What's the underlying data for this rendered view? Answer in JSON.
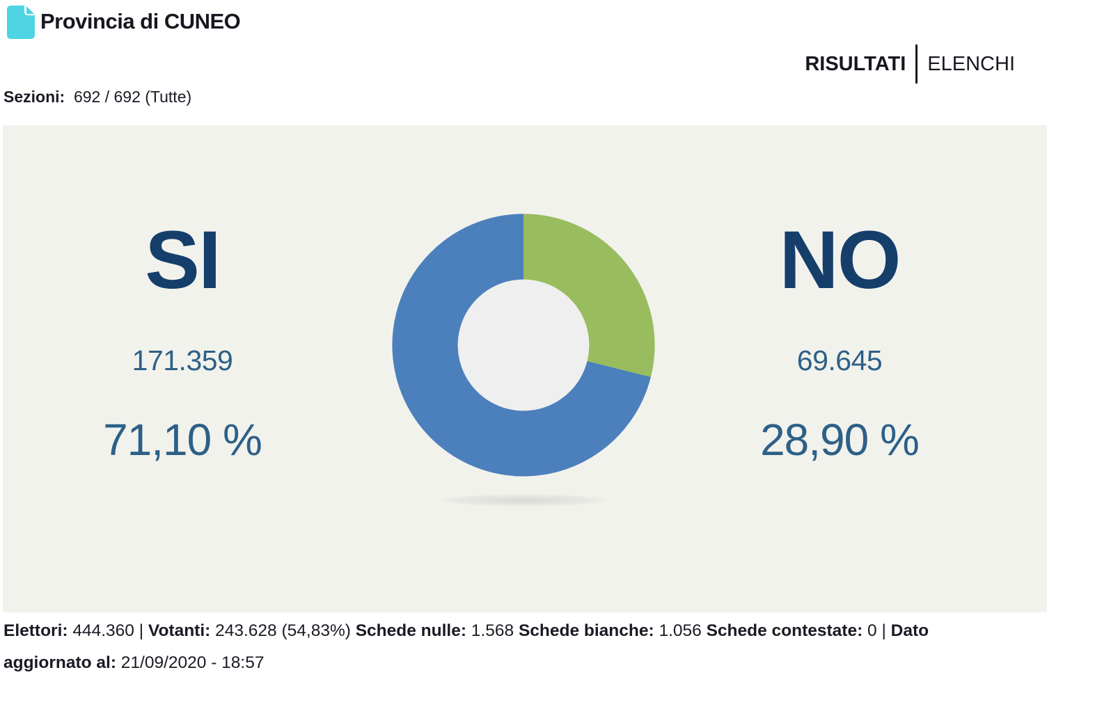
{
  "header": {
    "title": "Provincia di CUNEO",
    "tabs": [
      {
        "id": "risultati",
        "label": "RISULTATI",
        "active": true
      },
      {
        "id": "elenchi",
        "label": "ELENCHI",
        "active": false
      }
    ],
    "sections_label": "Sezioni:",
    "sections_value": "692 / 692 (Tutte)"
  },
  "results": {
    "si": {
      "label": "SI",
      "votes": "171.359",
      "percent": "71,10 %"
    },
    "no": {
      "label": "NO",
      "votes": "69.645",
      "percent": "28,90 %"
    }
  },
  "chart_data": {
    "type": "pie",
    "subtype": "donut",
    "title": "Referendum result share",
    "categories": [
      "SI",
      "NO"
    ],
    "values": [
      71.1,
      28.9
    ],
    "votes": [
      171359,
      69645
    ],
    "colors": [
      "#4c80bc",
      "#99bc5f"
    ],
    "start_angle_deg": -90,
    "direction": "clockwise",
    "hole_color": "#efefef",
    "legend": "none"
  },
  "footer": {
    "segments": [
      {
        "bold": "Elettori:",
        "text": " 444.360 | "
      },
      {
        "bold": "Votanti:",
        "text": " 243.628 (54,83%) "
      },
      {
        "bold": "Schede nulle:",
        "text": " 1.568 "
      },
      {
        "bold": "Schede bianche:",
        "text": " 1.056 "
      },
      {
        "bold": "Schede contestate:",
        "text": " 0 | "
      },
      {
        "bold": "Dato aggiornato al:",
        "text": " 21/09/2020 - 18:57"
      }
    ]
  },
  "colors": {
    "accent_turquoise": "#4ed4e2",
    "navy": "#153e6b",
    "steel_blue": "#2d6087",
    "panel_bg": "#f2f2ed",
    "text_dark": "#1a1a24"
  }
}
